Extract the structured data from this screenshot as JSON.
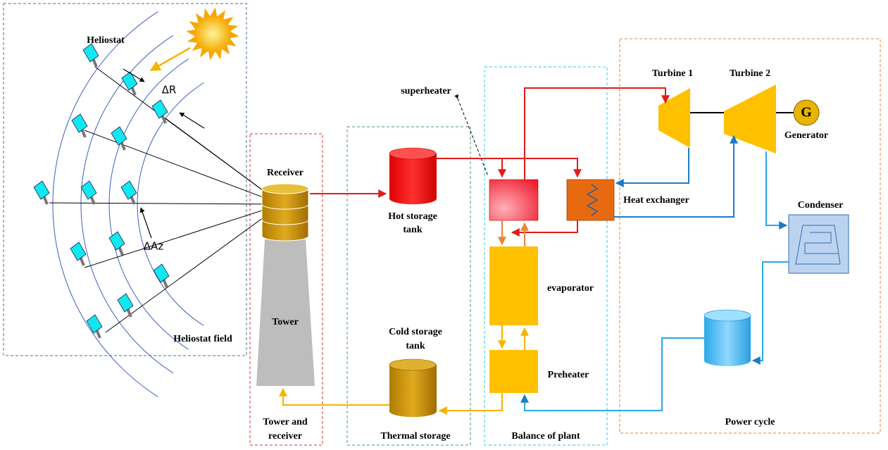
{
  "heliostat_field": {
    "heliostat_label": "Heliostat",
    "delta_r": "ΔR",
    "delta_az": "ΔAz",
    "section_label": "Heliostat field"
  },
  "tower_and_receiver": {
    "receiver": "Receiver",
    "tower": "Tower",
    "section_label": [
      "Tower and",
      "receiver"
    ]
  },
  "thermal_storage": {
    "hot_tank": [
      "Hot storage",
      "tank"
    ],
    "cold_tank": [
      "Cold storage",
      "tank"
    ],
    "section_label": "Thermal storage"
  },
  "balance_of_plant": {
    "superheater": "superheater",
    "evaporator": "evaporator",
    "preheater": "Preheater",
    "heat_exchanger": "Heat exchanger",
    "section_label": "Balance of plant"
  },
  "power_cycle": {
    "turbine_1": "Turbine 1",
    "turbine_2": "Turbine 2",
    "generator_symbol": "G",
    "generator": "Generator",
    "condenser": "Condenser",
    "section_label": "Power cycle"
  }
}
